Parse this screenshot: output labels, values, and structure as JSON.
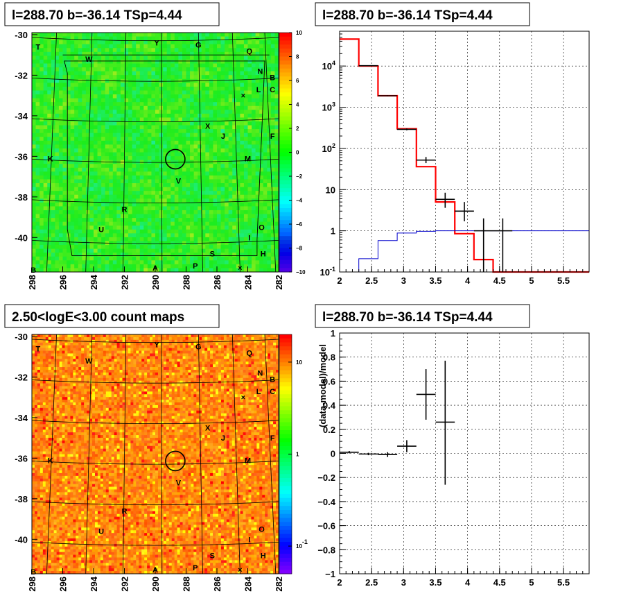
{
  "panels": {
    "tl": {
      "title": "l=288.70 b=-36.14 TSp=4.44",
      "x_ticks": [
        "298",
        "296",
        "294",
        "292",
        "290",
        "288",
        "286",
        "284",
        "282"
      ],
      "y_ticks": [
        "-30",
        "-32",
        "-34",
        "-36",
        "-38",
        "-40"
      ],
      "colorbar_ticks": [
        "10",
        "8",
        "6",
        "4",
        "2",
        "0",
        "−2",
        "−4",
        "−6",
        "−8",
        "−10"
      ],
      "source_labels": [
        {
          "t": "T",
          "x": 297.6,
          "y": -30.6
        },
        {
          "t": "W",
          "x": 294.3,
          "y": -31.2
        },
        {
          "t": "Y",
          "x": 289.9,
          "y": -30.4
        },
        {
          "t": "G",
          "x": 287.2,
          "y": -30.5
        },
        {
          "t": "Q",
          "x": 283.9,
          "y": -30.8
        },
        {
          "t": "N",
          "x": 283.2,
          "y": -31.8
        },
        {
          "t": "B",
          "x": 282.4,
          "y": -32.1
        },
        {
          "t": "L",
          "x": 283.3,
          "y": -32.7
        },
        {
          "t": "C",
          "x": 282.4,
          "y": -32.7
        },
        {
          "t": "×",
          "x": 284.3,
          "y": -33.0
        },
        {
          "t": "X",
          "x": 286.6,
          "y": -34.5
        },
        {
          "t": "J",
          "x": 285.6,
          "y": -35.0
        },
        {
          "t": "F",
          "x": 282.4,
          "y": -35.0
        },
        {
          "t": "K",
          "x": 296.8,
          "y": -36.1
        },
        {
          "t": "M",
          "x": 284.0,
          "y": -36.1
        },
        {
          "t": "V",
          "x": 288.5,
          "y": -37.2
        },
        {
          "t": "R",
          "x": 292.0,
          "y": -38.6
        },
        {
          "t": "U",
          "x": 293.5,
          "y": -39.6
        },
        {
          "t": "O",
          "x": 283.1,
          "y": -39.5
        },
        {
          "t": "I",
          "x": 283.9,
          "y": -40.0
        },
        {
          "t": "S",
          "x": 286.3,
          "y": -40.8
        },
        {
          "t": "H",
          "x": 283.0,
          "y": -40.8
        },
        {
          "t": "A",
          "x": 290.0,
          "y": -41.5
        },
        {
          "t": "P",
          "x": 287.4,
          "y": -41.4
        },
        {
          "t": "×",
          "x": 284.5,
          "y": -41.5
        },
        {
          "t": "B",
          "x": 297.9,
          "y": -41.6
        }
      ]
    },
    "tr": {
      "title": "l=288.70 b=-36.14 TSp=4.44",
      "x_ticks": [
        "2",
        "2.5",
        "3",
        "3.5",
        "4",
        "4.5",
        "5",
        "5.5"
      ],
      "y_ticks": [
        "10^-1",
        "1",
        "10",
        "10^2",
        "10^3",
        "10^4"
      ]
    },
    "bl": {
      "title": "2.50<logE<3.00 count maps",
      "x_ticks": [
        "298",
        "296",
        "294",
        "292",
        "290",
        "288",
        "286",
        "284",
        "282"
      ],
      "y_ticks": [
        "-30",
        "-32",
        "-34",
        "-36",
        "-38",
        "-40"
      ],
      "colorbar_ticks": [
        "10",
        "1",
        "10^-1"
      ]
    },
    "br": {
      "title": "l=288.70 b=-36.14 TSp=4.44",
      "ylabel": "(data-model)/model",
      "x_ticks": [
        "2",
        "2.5",
        "3",
        "3.5",
        "4",
        "4.5",
        "5",
        "5.5"
      ],
      "y_ticks": [
        "1",
        "0.8",
        "0.6",
        "0.4",
        "0.2",
        "0",
        "−0.2",
        "−0.4",
        "−0.6",
        "−0.8",
        "−1"
      ]
    }
  },
  "colors": {
    "model": "#ff0000",
    "data": "#000000",
    "component": "#0000cc",
    "circle": "#000000"
  },
  "chart_data": [
    {
      "type": "heatmap",
      "title": "l=288.70 b=-36.14 TSp=4.44",
      "xlim": [
        298,
        282
      ],
      "ylim": [
        -41.7,
        -29.9
      ],
      "zlim": [
        -10,
        10
      ],
      "circle_center": [
        288.7,
        -36.14
      ],
      "grid": true
    },
    {
      "type": "line",
      "title": "l=288.70 b=-36.14 TSp=4.44",
      "xlim": [
        2.0,
        5.9
      ],
      "ylim": [
        0.1,
        70000
      ],
      "ylog": true,
      "grid": true,
      "series": [
        {
          "color": "red",
          "edges": [
            2.0,
            2.3,
            2.6,
            2.9,
            3.2,
            3.5,
            3.8,
            4.1,
            4.4,
            5.9
          ],
          "values": [
            45000,
            10000,
            1900,
            300,
            36,
            5,
            0.85,
            0.2,
            0.1
          ]
        },
        {
          "color": "blue",
          "edges": [
            2.3,
            2.6,
            2.9,
            3.2,
            3.5,
            3.8,
            4.1,
            4.4,
            5.9
          ],
          "values": [
            0.21,
            0.58,
            0.88,
            0.97,
            1.0,
            1.0,
            1.0,
            1.0
          ]
        },
        {
          "color": "black",
          "points": [
            {
              "x": 2.45,
              "y": 10200,
              "xe": 0.15,
              "lo": 10000,
              "hi": 10400
            },
            {
              "x": 2.75,
              "y": 1900,
              "xe": 0.15,
              "lo": 1850,
              "hi": 1950
            },
            {
              "x": 3.05,
              "y": 290,
              "xe": 0.15,
              "lo": 275,
              "hi": 305
            },
            {
              "x": 3.35,
              "y": 52,
              "xe": 0.15,
              "lo": 44,
              "hi": 62
            },
            {
              "x": 3.65,
              "y": 5.8,
              "xe": 0.15,
              "lo": 3.6,
              "hi": 8.4
            },
            {
              "x": 3.95,
              "y": 3.0,
              "xe": 0.15,
              "lo": 1.7,
              "hi": 5.0
            },
            {
              "x": 4.25,
              "y": 1.0,
              "xe": 0.15,
              "lo": 0.1,
              "hi": 2.0
            },
            {
              "x": 4.55,
              "y": 1.0,
              "xe": 0.15,
              "lo": 0.1,
              "hi": 2.0
            }
          ]
        }
      ]
    },
    {
      "type": "heatmap",
      "title": "2.50<logE<3.00 count maps",
      "xlim": [
        298,
        282
      ],
      "ylim": [
        -41.7,
        -29.9
      ],
      "zlim": [
        0.05,
        20
      ],
      "zlog": true,
      "circle_center": [
        288.7,
        -36.14
      ],
      "grid": true
    },
    {
      "type": "scatter",
      "title": "l=288.70 b=-36.14 TSp=4.44",
      "ylabel": "(data-model)/model",
      "xlim": [
        2.0,
        5.9
      ],
      "ylim": [
        -1,
        1
      ],
      "grid": true,
      "points": [
        {
          "x": 2.15,
          "y": 0.01,
          "xe": 0.15,
          "ye": 0.01
        },
        {
          "x": 2.45,
          "y": -0.005,
          "xe": 0.15,
          "ye": 0.01
        },
        {
          "x": 2.75,
          "y": -0.01,
          "xe": 0.15,
          "ye": 0.02
        },
        {
          "x": 3.05,
          "y": 0.06,
          "xe": 0.15,
          "ye": 0.05
        },
        {
          "x": 3.35,
          "y": 0.49,
          "xe": 0.15,
          "ye": 0.21
        },
        {
          "x": 3.65,
          "y": 0.26,
          "xe": 0.15,
          "lo": -0.26,
          "hi": 0.77
        }
      ]
    }
  ]
}
